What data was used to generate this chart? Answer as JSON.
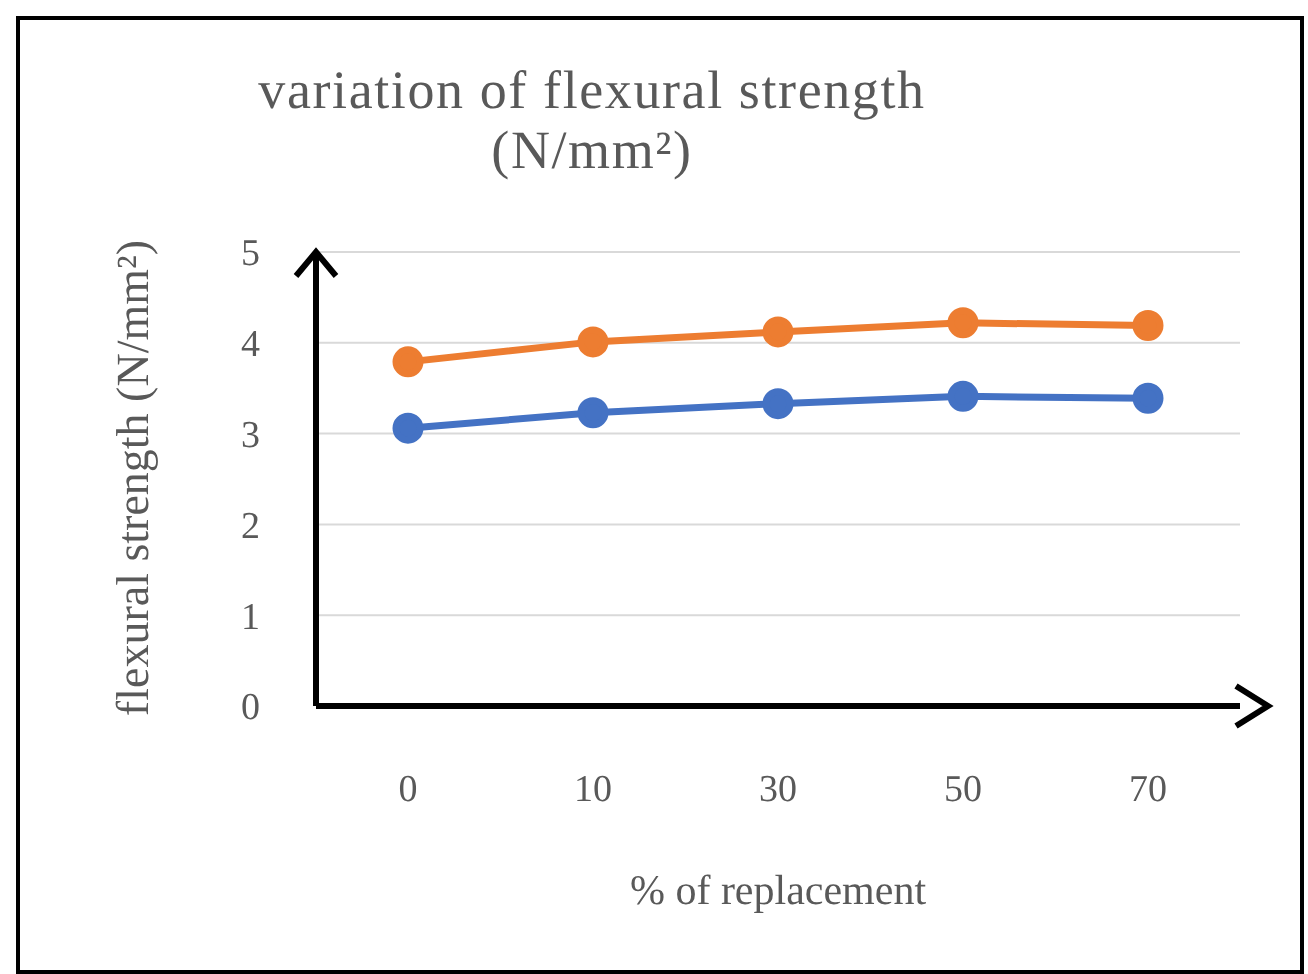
{
  "chart_data": {
    "type": "line",
    "title": "variation of flexural strength (N/mm²)",
    "xlabel": "% of replacement",
    "ylabel": "flexural strength (N/mm²)",
    "categories": [
      "0",
      "10",
      "30",
      "50",
      "70"
    ],
    "series": [
      {
        "color": "#4472c4",
        "values": [
          3.06,
          3.23,
          3.33,
          3.41,
          3.39
        ]
      },
      {
        "color": "#ed7d31",
        "values": [
          3.79,
          4.01,
          4.12,
          4.22,
          4.19
        ]
      }
    ],
    "ylim": [
      0,
      5
    ],
    "yticks": [
      0,
      1,
      2,
      3,
      4,
      5
    ],
    "grid": "y",
    "marker": "circle",
    "line_style": "solid"
  }
}
